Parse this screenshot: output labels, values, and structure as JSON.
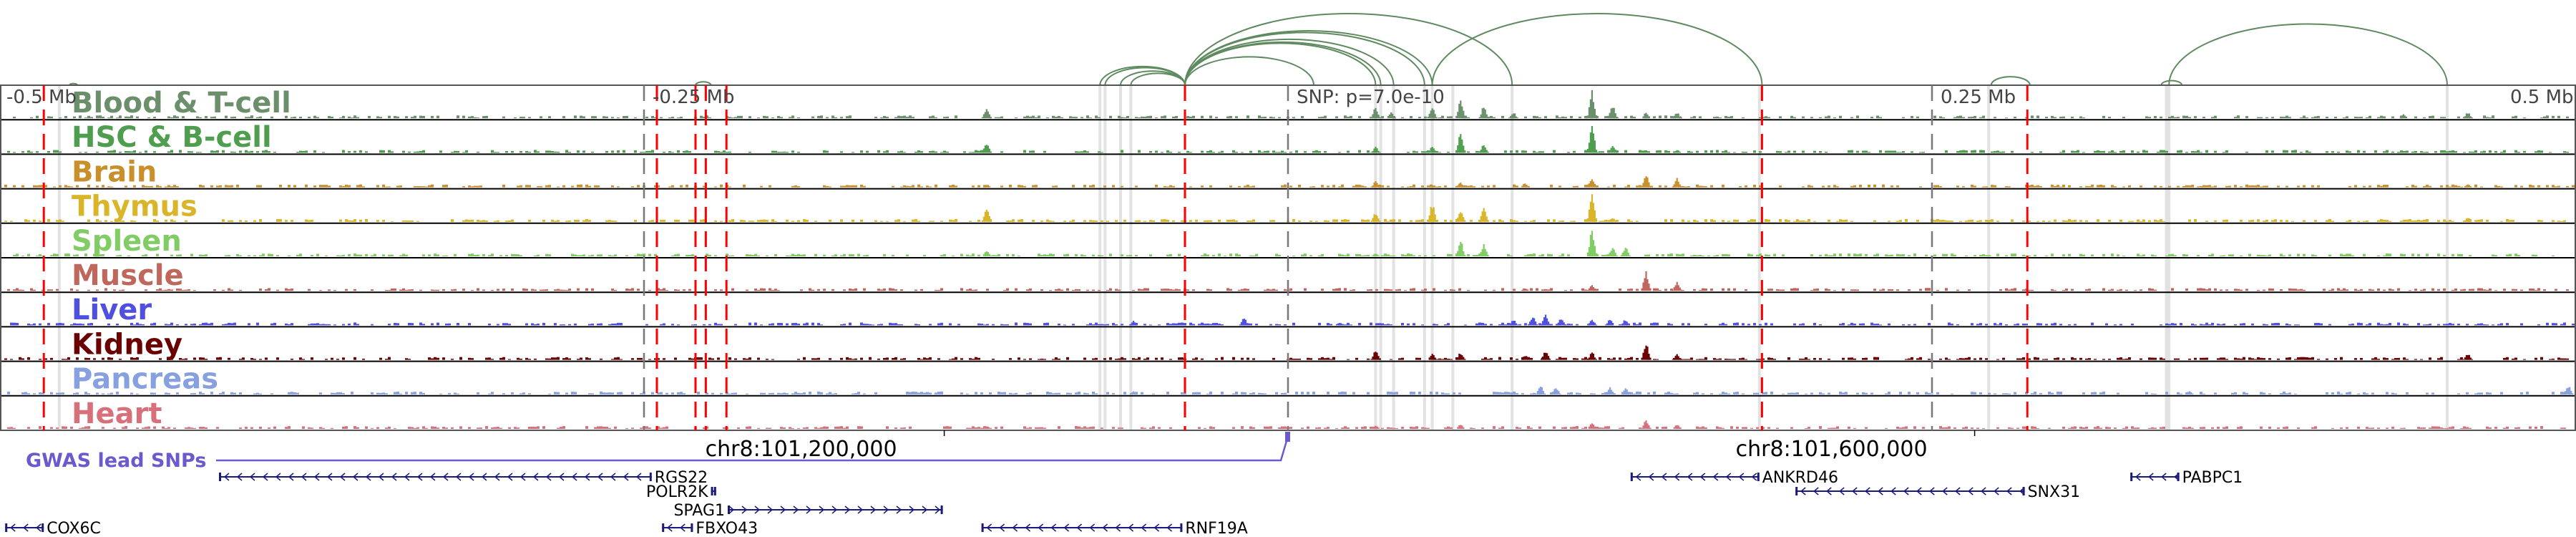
{
  "axis": {
    "range_mb": [
      -0.5,
      0.5
    ],
    "labels": [
      {
        "offset": -0.5,
        "text": "-0.5 Mb"
      },
      {
        "offset": -0.25,
        "text": "-0.25 Mb"
      },
      {
        "offset": 0.0,
        "text": "SNP: p=7.0e-10"
      },
      {
        "offset": 0.25,
        "text": "0.25 Mb"
      },
      {
        "offset": 0.5,
        "text": "0.5 Mb"
      }
    ],
    "chr_labels": [
      {
        "offset": -0.189,
        "text": "chr8:101,200,000"
      },
      {
        "offset": 0.211,
        "text": "chr8:101,600,000"
      }
    ]
  },
  "tracks": [
    {
      "name": "Blood & T-cell",
      "color": "#6a8f6a",
      "peaks": [
        [
          -0.117,
          0.35
        ],
        [
          0.034,
          0.35
        ],
        [
          0.04,
          0.2
        ],
        [
          0.056,
          0.4
        ],
        [
          0.067,
          0.6
        ],
        [
          0.076,
          0.4
        ],
        [
          0.0875,
          0.2
        ],
        [
          0.118,
          0.9
        ],
        [
          0.126,
          0.45
        ],
        [
          0.139,
          0.2
        ],
        [
          0.151,
          0.2
        ],
        [
          0.433,
          0.15
        ],
        [
          0.458,
          0.2
        ]
      ]
    },
    {
      "name": "HSC & B-cell",
      "color": "#4f9e4f",
      "peaks": [
        [
          -0.117,
          0.35
        ],
        [
          0.034,
          0.2
        ],
        [
          0.056,
          0.2
        ],
        [
          0.067,
          0.65
        ],
        [
          0.076,
          0.3
        ],
        [
          0.118,
          0.95
        ],
        [
          0.126,
          0.25
        ],
        [
          0.151,
          0.1
        ]
      ]
    },
    {
      "name": "Brain",
      "color": "#c88f2a",
      "peaks": [
        [
          -0.117,
          0.1
        ],
        [
          0.034,
          0.2
        ],
        [
          0.067,
          0.15
        ],
        [
          0.092,
          0.15
        ],
        [
          0.118,
          0.3
        ],
        [
          0.139,
          0.4
        ],
        [
          0.151,
          0.3
        ],
        [
          0.458,
          0.1
        ]
      ]
    },
    {
      "name": "Thymus",
      "color": "#d9b52a",
      "peaks": [
        [
          -0.117,
          0.45
        ],
        [
          0.034,
          0.3
        ],
        [
          0.056,
          0.6
        ],
        [
          0.067,
          0.4
        ],
        [
          0.076,
          0.45
        ],
        [
          0.118,
          0.95
        ],
        [
          0.126,
          0.15
        ],
        [
          0.458,
          0.15
        ]
      ]
    },
    {
      "name": "Spleen",
      "color": "#82cc66",
      "peaks": [
        [
          -0.117,
          0.2
        ],
        [
          0.034,
          0.1
        ],
        [
          0.067,
          0.5
        ],
        [
          0.076,
          0.4
        ],
        [
          0.118,
          0.9
        ],
        [
          0.126,
          0.3
        ],
        [
          0.131,
          0.3
        ]
      ]
    },
    {
      "name": "Muscle",
      "color": "#c0675d",
      "peaks": [
        [
          0.092,
          0.1
        ],
        [
          0.118,
          0.2
        ],
        [
          0.139,
          0.65
        ],
        [
          0.151,
          0.3
        ]
      ]
    },
    {
      "name": "Liver",
      "color": "#5050e0",
      "peaks": [
        [
          -0.06,
          0.15
        ],
        [
          -0.017,
          0.25
        ],
        [
          0.02,
          0.1
        ],
        [
          0.0875,
          0.2
        ],
        [
          0.095,
          0.3
        ],
        [
          0.1,
          0.35
        ],
        [
          0.106,
          0.25
        ],
        [
          0.118,
          0.2
        ],
        [
          0.125,
          0.2
        ],
        [
          0.131,
          0.2
        ]
      ]
    },
    {
      "name": "Kidney",
      "color": "#6a0000",
      "peaks": [
        [
          0.034,
          0.3
        ],
        [
          0.056,
          0.2
        ],
        [
          0.067,
          0.25
        ],
        [
          0.092,
          0.15
        ],
        [
          0.1,
          0.3
        ],
        [
          0.118,
          0.25
        ],
        [
          0.139,
          0.55
        ],
        [
          0.151,
          0.2
        ],
        [
          0.458,
          0.2
        ]
      ]
    },
    {
      "name": "Pancreas",
      "color": "#86a0e0",
      "peaks": [
        [
          -0.06,
          0.1
        ],
        [
          0.098,
          0.3
        ],
        [
          0.104,
          0.25
        ],
        [
          0.125,
          0.25
        ],
        [
          0.131,
          0.2
        ],
        [
          0.35,
          0.1
        ],
        [
          0.497,
          0.3
        ]
      ]
    },
    {
      "name": "Heart",
      "color": "#d8707c",
      "peaks": [
        [
          -0.117,
          0.1
        ],
        [
          0.034,
          0.1
        ],
        [
          0.067,
          0.15
        ],
        [
          0.118,
          0.2
        ],
        [
          0.139,
          0.3
        ],
        [
          0.151,
          0.15
        ]
      ]
    }
  ],
  "red_lines": [
    -0.483,
    -0.245,
    -0.23,
    -0.226,
    -0.218,
    -0.04,
    0.184,
    0.287
  ],
  "gray_dashed": [
    -0.25,
    0.0,
    0.25
  ],
  "gray_bands": [
    -0.477,
    -0.073,
    -0.071,
    -0.065,
    -0.061,
    0.034,
    0.036,
    0.041,
    0.053,
    0.056,
    0.064,
    0.087,
    0.183,
    0.272,
    0.341,
    0.342,
    0.45
  ],
  "arcs": [
    [
      -0.473,
      -0.47
    ],
    [
      -0.23,
      -0.224
    ],
    [
      -0.073,
      -0.04
    ],
    [
      -0.071,
      -0.04
    ],
    [
      -0.065,
      -0.04
    ],
    [
      -0.061,
      -0.04
    ],
    [
      -0.04,
      0.01
    ],
    [
      -0.04,
      0.034
    ],
    [
      -0.04,
      0.036
    ],
    [
      -0.04,
      0.041
    ],
    [
      -0.04,
      0.053
    ],
    [
      -0.04,
      0.056
    ],
    [
      -0.04,
      0.087
    ],
    [
      0.056,
      0.184
    ],
    [
      0.273,
      0.288
    ],
    [
      0.339,
      0.347
    ],
    [
      0.342,
      0.45
    ]
  ],
  "arc_color": "#5f8a5f",
  "gwas": {
    "label": "GWAS lead SNPs",
    "color": "#6a5acd",
    "snp_offset": 0.0
  },
  "genes": [
    {
      "name": "RGS22",
      "start": -0.415,
      "end": -0.247,
      "strand": "-",
      "row": 0,
      "label_side": "right"
    },
    {
      "name": "POLR2K",
      "start": -0.224,
      "end": -0.222,
      "strand": "-",
      "row": 1,
      "label_side": "left"
    },
    {
      "name": "SPAG1",
      "start": -0.2175,
      "end": -0.134,
      "strand": "+",
      "row": 2,
      "label_side": "left"
    },
    {
      "name": "FBXO43",
      "start": -0.243,
      "end": -0.231,
      "strand": "-",
      "row": 3,
      "label_side": "right"
    },
    {
      "name": "RNF19A",
      "start": -0.119,
      "end": -0.041,
      "strand": "-",
      "row": 3,
      "label_side": "right"
    },
    {
      "name": "COX6C",
      "start": -0.498,
      "end": -0.483,
      "strand": "-",
      "row": 3,
      "label_side": "right"
    },
    {
      "name": "ANKRD46",
      "start": 0.133,
      "end": 0.183,
      "strand": "-",
      "row": 0,
      "label_side": "right"
    },
    {
      "name": "SNX31",
      "start": 0.197,
      "end": 0.286,
      "strand": "-",
      "row": 1,
      "label_side": "right"
    },
    {
      "name": "PABPC1",
      "start": 0.327,
      "end": 0.346,
      "strand": "-",
      "row": 0,
      "label_side": "right"
    }
  ]
}
